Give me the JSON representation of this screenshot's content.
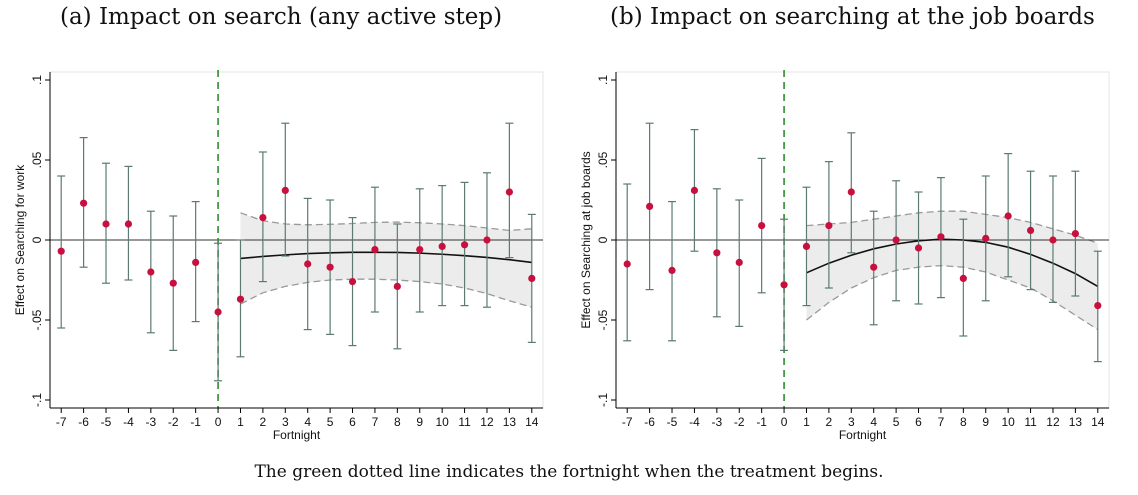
{
  "panels": [
    {
      "title": "(a) Impact on search (any active step)",
      "ylabel": "Effect on Searching for work",
      "xlabel": "Fortnight"
    },
    {
      "title": "(b) Impact on searching at the job boards",
      "ylabel": "Effect on Searching at job boards",
      "xlabel": "Fortnight"
    }
  ],
  "caption": "The green dotted line indicates the fortnight when the treatment begins.",
  "colors": {
    "point": "#c8103e",
    "ci": "#5c7a73",
    "treatment_line": "#2e8b2e",
    "band": "#ececec",
    "band_edge": "#9a9a9a",
    "fit": "#111111"
  },
  "chart_data": [
    {
      "type": "scatter",
      "title": "(a) Impact on search (any active step)",
      "xlabel": "Fortnight",
      "ylabel": "Effect on Searching for work",
      "x": [
        -7,
        -6,
        -5,
        -4,
        -3,
        -2,
        -1,
        0,
        1,
        2,
        3,
        4,
        5,
        6,
        7,
        8,
        9,
        10,
        11,
        12,
        13,
        14
      ],
      "xlim": [
        -7.5,
        14.5
      ],
      "ylim": [
        -0.105,
        0.105
      ],
      "yticks": [
        -0.1,
        -0.05,
        0,
        0.05,
        0.1
      ],
      "ytick_labels": [
        "-.1",
        "-.05",
        "0",
        ".05",
        ".1"
      ],
      "treatment_start": 0,
      "series": [
        {
          "name": "estimate",
          "values": [
            -0.007,
            0.023,
            0.01,
            0.01,
            -0.02,
            -0.027,
            -0.014,
            -0.045,
            -0.037,
            0.014,
            0.031,
            -0.015,
            -0.017,
            -0.026,
            -0.006,
            -0.029,
            -0.006,
            -0.004,
            -0.003,
            0.0,
            0.03,
            -0.024
          ]
        },
        {
          "name": "ci_lower",
          "values": [
            -0.055,
            -0.017,
            -0.027,
            -0.025,
            -0.058,
            -0.069,
            -0.051,
            -0.088,
            -0.073,
            -0.026,
            -0.01,
            -0.056,
            -0.059,
            -0.066,
            -0.045,
            -0.068,
            -0.045,
            -0.041,
            -0.041,
            -0.042,
            -0.011,
            -0.064
          ]
        },
        {
          "name": "ci_upper",
          "values": [
            0.04,
            0.064,
            0.048,
            0.046,
            0.018,
            0.015,
            0.024,
            -0.002,
            0.0,
            0.055,
            0.073,
            0.026,
            0.025,
            0.014,
            0.033,
            0.01,
            0.032,
            0.034,
            0.036,
            0.042,
            0.073,
            0.016
          ]
        }
      ],
      "fit": {
        "x": [
          1,
          2,
          3,
          4,
          5,
          6,
          7,
          8,
          9,
          10,
          11,
          12,
          13,
          14
        ],
        "values": [
          -0.0115,
          -0.0103,
          -0.0093,
          -0.0085,
          -0.008,
          -0.0077,
          -0.0077,
          -0.0078,
          -0.0082,
          -0.0089,
          -0.0098,
          -0.0109,
          -0.0123,
          -0.014
        ],
        "lower": [
          -0.04,
          -0.033,
          -0.029,
          -0.0265,
          -0.025,
          -0.0245,
          -0.0245,
          -0.025,
          -0.026,
          -0.0275,
          -0.03,
          -0.0335,
          -0.038,
          -0.042
        ],
        "upper": [
          0.017,
          0.012,
          0.01,
          0.0095,
          0.0098,
          0.0103,
          0.011,
          0.0112,
          0.0108,
          0.01,
          0.009,
          0.0075,
          0.006,
          0.007
        ]
      }
    },
    {
      "type": "scatter",
      "title": "(b) Impact on searching at the job boards",
      "xlabel": "Fortnight",
      "ylabel": "Effect on Searching at job boards",
      "x": [
        -7,
        -6,
        -5,
        -4,
        -3,
        -2,
        -1,
        0,
        1,
        2,
        3,
        4,
        5,
        6,
        7,
        8,
        9,
        10,
        11,
        12,
        13,
        14
      ],
      "xlim": [
        -7.5,
        14.5
      ],
      "ylim": [
        -0.105,
        0.105
      ],
      "yticks": [
        -0.1,
        -0.05,
        0,
        0.05,
        0.1
      ],
      "ytick_labels": [
        "-.1",
        "-.05",
        "0",
        ".05",
        ".1"
      ],
      "treatment_start": 0,
      "series": [
        {
          "name": "estimate",
          "values": [
            -0.015,
            0.021,
            -0.019,
            0.031,
            -0.008,
            -0.014,
            0.009,
            -0.028,
            -0.004,
            0.009,
            0.03,
            -0.017,
            0.0,
            -0.005,
            0.002,
            -0.024,
            0.001,
            0.015,
            0.006,
            0.0,
            0.004,
            -0.041
          ]
        },
        {
          "name": "ci_lower",
          "values": [
            -0.063,
            -0.031,
            -0.063,
            -0.007,
            -0.048,
            -0.054,
            -0.033,
            -0.069,
            -0.041,
            -0.03,
            -0.008,
            -0.053,
            -0.038,
            -0.04,
            -0.036,
            -0.06,
            -0.038,
            -0.023,
            -0.031,
            -0.039,
            -0.035,
            -0.076
          ]
        },
        {
          "name": "ci_upper",
          "values": [
            0.035,
            0.073,
            0.024,
            0.069,
            0.032,
            0.025,
            0.051,
            0.013,
            0.033,
            0.049,
            0.067,
            0.018,
            0.037,
            0.03,
            0.039,
            0.013,
            0.04,
            0.054,
            0.043,
            0.04,
            0.043,
            -0.007
          ]
        }
      ],
      "fit": {
        "x": [
          1,
          2,
          3,
          4,
          5,
          6,
          7,
          8,
          9,
          10,
          11,
          12,
          13,
          14
        ],
        "values": [
          -0.0205,
          -0.0145,
          -0.0095,
          -0.0055,
          -0.0025,
          -0.0005,
          0.0005,
          0.0,
          -0.0015,
          -0.0045,
          -0.009,
          -0.0145,
          -0.021,
          -0.029
        ],
        "lower": [
          -0.05,
          -0.039,
          -0.03,
          -0.0235,
          -0.019,
          -0.017,
          -0.016,
          -0.017,
          -0.02,
          -0.025,
          -0.03,
          -0.038,
          -0.047,
          -0.056
        ],
        "upper": [
          0.009,
          0.01,
          0.011,
          0.013,
          0.015,
          0.017,
          0.018,
          0.018,
          0.016,
          0.014,
          0.011,
          0.007,
          0.003,
          -0.002
        ]
      }
    }
  ]
}
